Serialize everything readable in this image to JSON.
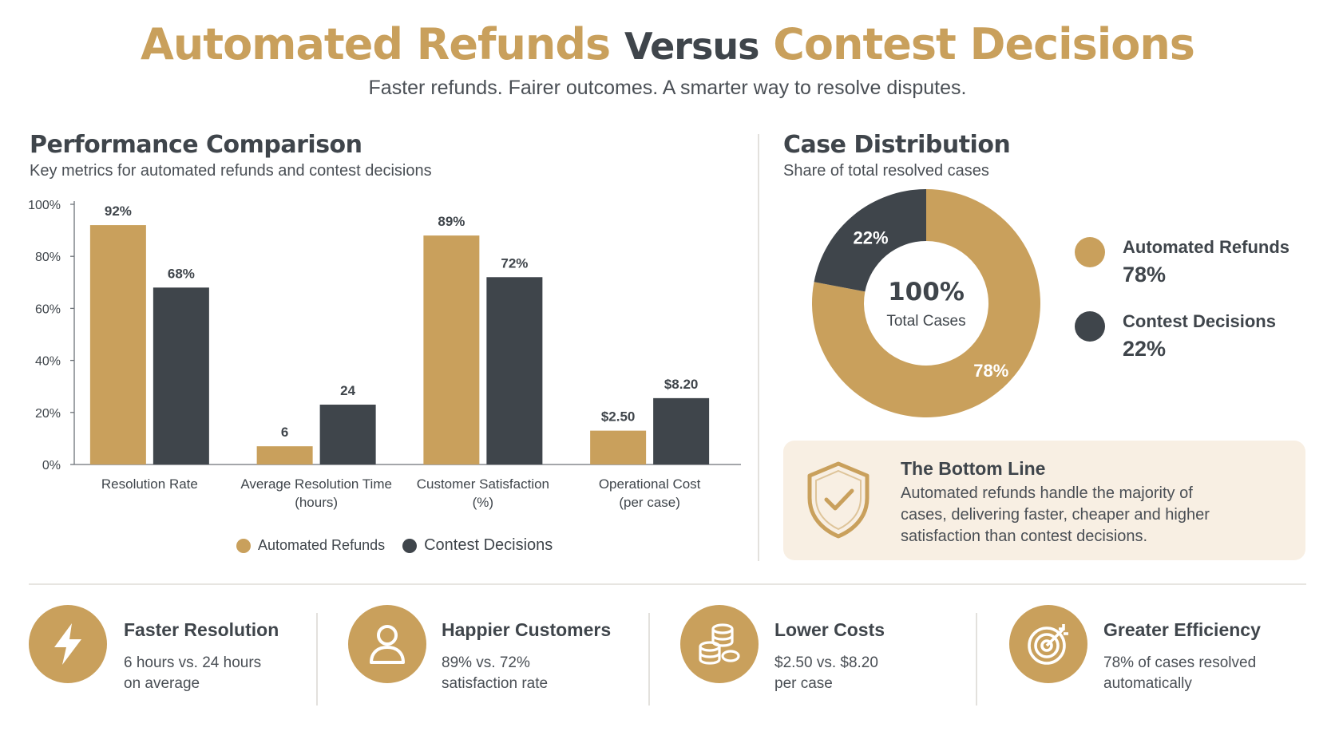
{
  "header": {
    "title_part1": "Automated Refunds",
    "title_part2": "Versus",
    "title_part3": "Contest Decisions",
    "subtitle": "Faster refunds. Fairer outcomes. A smarter way to resolve disputes."
  },
  "colors": {
    "automated": "#c9a05c",
    "contest": "#3f454b",
    "panel_bg": "#f8efe3"
  },
  "performance": {
    "title": "Performance Comparison",
    "subtitle": "Key metrics for automated refunds and contest decisions"
  },
  "chart_data": [
    {
      "type": "bar",
      "title": "Performance Comparison",
      "categories": [
        [
          "Resolution Rate"
        ],
        [
          "Average Resolution Time",
          "(hours)"
        ],
        [
          "Customer Satisfaction",
          "(%)"
        ],
        [
          "Operational Cost",
          "(per case)"
        ]
      ],
      "series": [
        {
          "name": "Automated Refunds",
          "values": [
            92,
            6,
            89,
            2.5
          ],
          "labels": [
            "92%",
            "6",
            "89%",
            "$2.50"
          ],
          "bar_heights_pct": [
            92,
            7,
            88,
            13
          ]
        },
        {
          "name": "Contest Decisions",
          "values": [
            68,
            24,
            72,
            8.2
          ],
          "labels": [
            "68%",
            "24",
            "72%",
            "$8.20"
          ],
          "bar_heights_pct": [
            68,
            23,
            72,
            25.5
          ]
        }
      ],
      "yticks": [
        "0%",
        "20%",
        "40%",
        "60%",
        "80%",
        "100%"
      ],
      "ylim": [
        0,
        100
      ],
      "grid": false,
      "legend": "bottom"
    },
    {
      "type": "pie",
      "title": "Case Distribution",
      "subtitle": "Share of total resolved cases",
      "slices": [
        {
          "name": "Automated Refunds",
          "value": 78,
          "label": "78%"
        },
        {
          "name": "Contest Decisions",
          "value": 22,
          "label": "22%"
        }
      ],
      "center_value": "100%",
      "center_label": "Total Cases",
      "legend": "right"
    }
  ],
  "distribution": {
    "title": "Case Distribution",
    "subtitle": "Share of total resolved cases",
    "legend": [
      {
        "name": "Automated Refunds",
        "value": "78%"
      },
      {
        "name": "Contest Decisions",
        "value": "22%"
      }
    ]
  },
  "bottom_line": {
    "title": "The Bottom Line",
    "text": "Automated refunds handle the majority of cases, delivering faster, cheaper and higher satisfaction than contest decisions.",
    "icon": "shield-check-icon"
  },
  "features": [
    {
      "icon": "lightning-icon",
      "title": "Faster Resolution",
      "line1": "6 hours vs. 24 hours",
      "line2": "on average"
    },
    {
      "icon": "user-icon",
      "title": "Happier Customers",
      "line1": "89% vs. 72%",
      "line2": "satisfaction rate"
    },
    {
      "icon": "coins-icon",
      "title": "Lower Costs",
      "line1": "$2.50 vs. $8.20",
      "line2": "per case"
    },
    {
      "icon": "target-icon",
      "title": "Greater Efficiency",
      "line1": "78% of cases resolved",
      "line2": "automatically"
    }
  ]
}
